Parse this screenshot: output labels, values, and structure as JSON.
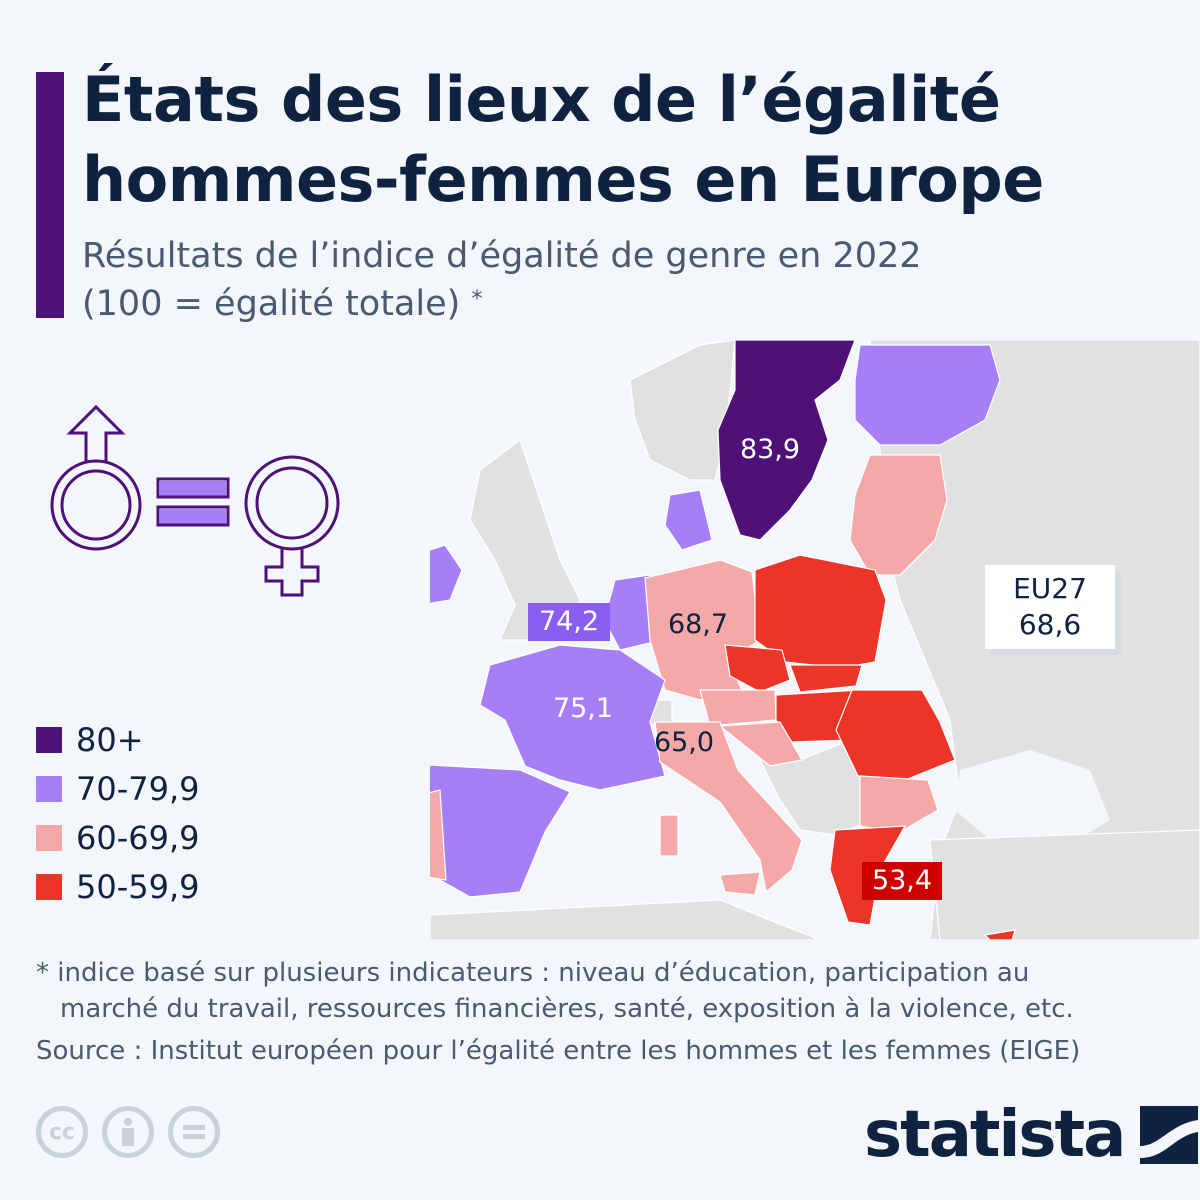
{
  "header": {
    "title_line1": "États des lieux de l’égalité",
    "title_line2": "hommes-femmes en Europe",
    "subtitle_line1": "Résultats de l’indice d’égalité de genre en 2022",
    "subtitle_line2": "(100 = égalité totale)",
    "subtitle_mark": "*"
  },
  "colors": {
    "accent": "#4e1178",
    "bin_80_plus": "#4e1178",
    "bin_70_79": "#a67ef5",
    "bin_60_69": "#f5a8a8",
    "bin_50_59": "#eb3528",
    "non_eu": "#e1e1e1",
    "label_belgium": "#8a5cf0",
    "label_greece": "#cc0000"
  },
  "chart_data": {
    "type": "choropleth",
    "legend": [
      {
        "label": "80+",
        "color": "#4e1178"
      },
      {
        "label": "70-79,9",
        "color": "#a67ef5"
      },
      {
        "label": "60-69,9",
        "color": "#f5a8a8"
      },
      {
        "label": "50-59,9",
        "color": "#eb3528"
      }
    ],
    "labels": [
      {
        "country": "Suède",
        "value": "83,9"
      },
      {
        "country": "Belgique",
        "value": "74,2"
      },
      {
        "country": "Allemagne",
        "value": "68,7"
      },
      {
        "country": "France",
        "value": "75,1"
      },
      {
        "country": "Italie",
        "value": "65,0"
      },
      {
        "country": "Grèce",
        "value": "53,4"
      }
    ],
    "eu27": {
      "label": "EU27",
      "value": "68,6"
    }
  },
  "footer": {
    "note_mark": "*",
    "note_line1": "indice basé sur plusieurs indicateurs : niveau d’éducation, participation au",
    "note_line2": "marché du travail, ressources financières, santé, exposition à la violence, etc.",
    "source": "Source : Institut européen pour l’égalité entre les hommes et les femmes (EIGE)",
    "cc_label": "cc",
    "brand": "statista"
  }
}
